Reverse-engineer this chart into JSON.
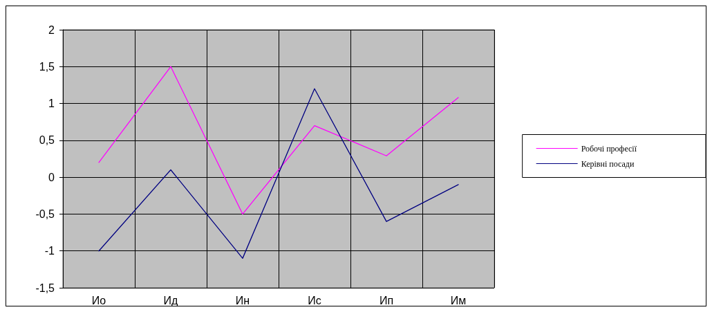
{
  "chart_data": {
    "type": "line",
    "categories": [
      "Ио",
      "Ид",
      "Ин",
      "Ис",
      "Ип",
      "Им"
    ],
    "series": [
      {
        "name": "Робочі професії",
        "color": "#ff00ff",
        "values": [
          0.2,
          1.5,
          -0.5,
          0.7,
          0.29,
          1.08
        ]
      },
      {
        "name": "Керівні посади",
        "color": "#000080",
        "values": [
          -1,
          0.1,
          -1.1,
          1.2,
          -0.6,
          -0.1
        ]
      }
    ],
    "ylim": [
      -1.5,
      2
    ],
    "yticks": [
      {
        "value": -1.5,
        "label": "-1,5"
      },
      {
        "value": -1,
        "label": "-1"
      },
      {
        "value": -0.5,
        "label": "-0,5"
      },
      {
        "value": 0,
        "label": "0"
      },
      {
        "value": 0.5,
        "label": "0,5"
      },
      {
        "value": 1,
        "label": "1"
      },
      {
        "value": 1.5,
        "label": "1,5"
      },
      {
        "value": 2,
        "label": "2"
      }
    ],
    "grid": true,
    "legend": "right",
    "marker": "none",
    "line_style": "solid"
  }
}
